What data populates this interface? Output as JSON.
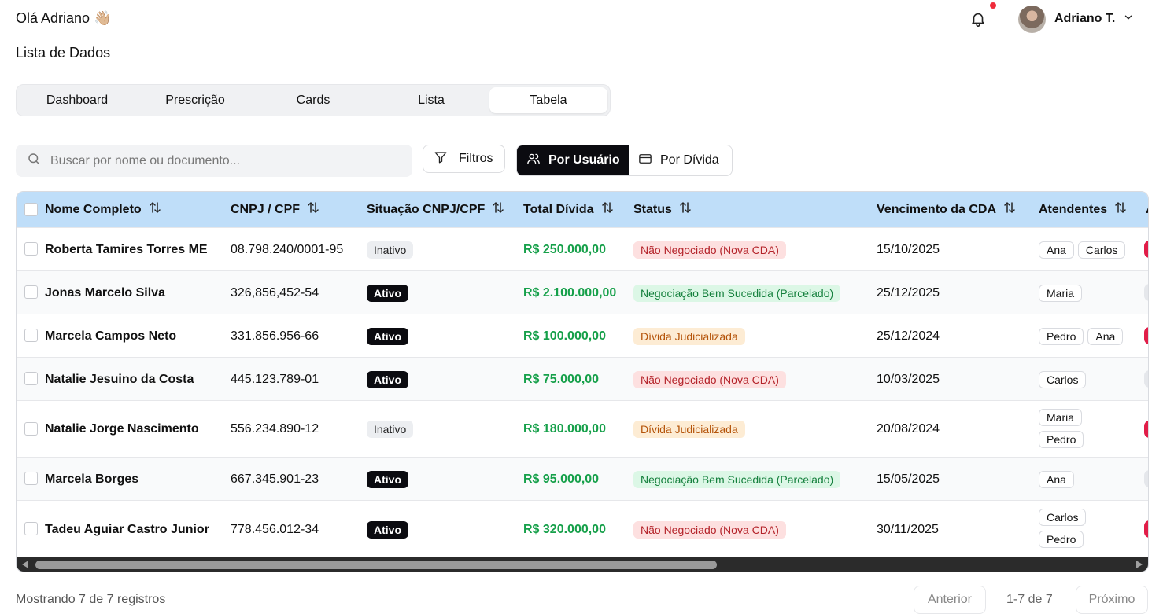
{
  "header": {
    "greeting": "Olá Adriano 👋🏼",
    "subtitle": "Lista de Dados",
    "user_name": "Adriano T.",
    "notification_dot_color": "#ef2b3b"
  },
  "tabs": [
    {
      "label": "Dashboard",
      "active": false
    },
    {
      "label": "Prescrição",
      "active": false
    },
    {
      "label": "Cards",
      "active": false
    },
    {
      "label": "Lista",
      "active": false
    },
    {
      "label": "Tabela",
      "active": true
    }
  ],
  "toolbar": {
    "search_placeholder": "Buscar por nome ou documento...",
    "filter_label": "Filtros",
    "view_by_user_label": "Por Usuário",
    "view_by_debt_label": "Por Dívida",
    "active_view": "Por Usuário"
  },
  "table": {
    "columns": [
      {
        "label": "Nome Completo",
        "sortable": true
      },
      {
        "label": "CNPJ / CPF",
        "sortable": true
      },
      {
        "label": "Situação CNPJ/CPF",
        "sortable": true
      },
      {
        "label": "Total Dívida",
        "sortable": true
      },
      {
        "label": "Status",
        "sortable": true
      },
      {
        "label": "Vencimento da CDA",
        "sortable": true
      },
      {
        "label": "Atendentes",
        "sortable": true
      },
      {
        "label": "A",
        "sortable": false
      }
    ],
    "rows": [
      {
        "name": "Roberta Tamires Torres ME",
        "doc": "08.798.240/0001-95",
        "situacao": "Inativo",
        "total": "R$ 250.000,00",
        "status": "Não Negociado (Nova CDA)",
        "status_kind": "red",
        "vencimento": "15/10/2025",
        "atendentes": [
          "Ana",
          "Carlos"
        ]
      },
      {
        "name": "Jonas Marcelo Silva",
        "doc": "326,856,452-54",
        "situacao": "Ativo",
        "total": "R$ 2.100.000,00",
        "status": "Negociação Bem Sucedida (Parcelado)",
        "status_kind": "green",
        "vencimento": "25/12/2025",
        "atendentes": [
          "Maria"
        ]
      },
      {
        "name": "Marcela Campos Neto",
        "doc": "331.856.956-66",
        "situacao": "Ativo",
        "total": "R$ 100.000,00",
        "status": "Dívida Judicializada",
        "status_kind": "orange",
        "vencimento": "25/12/2024",
        "atendentes": [
          "Pedro",
          "Ana"
        ]
      },
      {
        "name": "Natalie Jesuino da Costa",
        "doc": "445.123.789-01",
        "situacao": "Ativo",
        "total": "R$ 75.000,00",
        "status": "Não Negociado (Nova CDA)",
        "status_kind": "red",
        "vencimento": "10/03/2025",
        "atendentes": [
          "Carlos"
        ]
      },
      {
        "name": "Natalie Jorge Nascimento",
        "doc": "556.234.890-12",
        "situacao": "Inativo",
        "total": "R$ 180.000,00",
        "status": "Dívida Judicializada",
        "status_kind": "orange",
        "vencimento": "20/08/2024",
        "atendentes": [
          "Maria",
          "Pedro"
        ]
      },
      {
        "name": "Marcela Borges",
        "doc": "667.345.901-23",
        "situacao": "Ativo",
        "total": "R$ 95.000,00",
        "status": "Negociação Bem Sucedida (Parcelado)",
        "status_kind": "green",
        "vencimento": "15/05/2025",
        "atendentes": [
          "Ana"
        ]
      },
      {
        "name": "Tadeu Aguiar Castro Junior",
        "doc": "778.456.012-34",
        "situacao": "Ativo",
        "total": "R$ 320.000,00",
        "status": "Não Negociado (Nova CDA)",
        "status_kind": "red",
        "vencimento": "30/11/2025",
        "atendentes": [
          "Carlos",
          "Pedro"
        ]
      }
    ]
  },
  "footer": {
    "records_text": "Mostrando 7 de 7 registros",
    "prev_label": "Anterior",
    "page_info": "1-7 de 7",
    "next_label": "Próximo"
  },
  "colors": {
    "header_bg": "#bfdef9",
    "money": "#16a04a",
    "active_dark": "#0b0b10"
  }
}
